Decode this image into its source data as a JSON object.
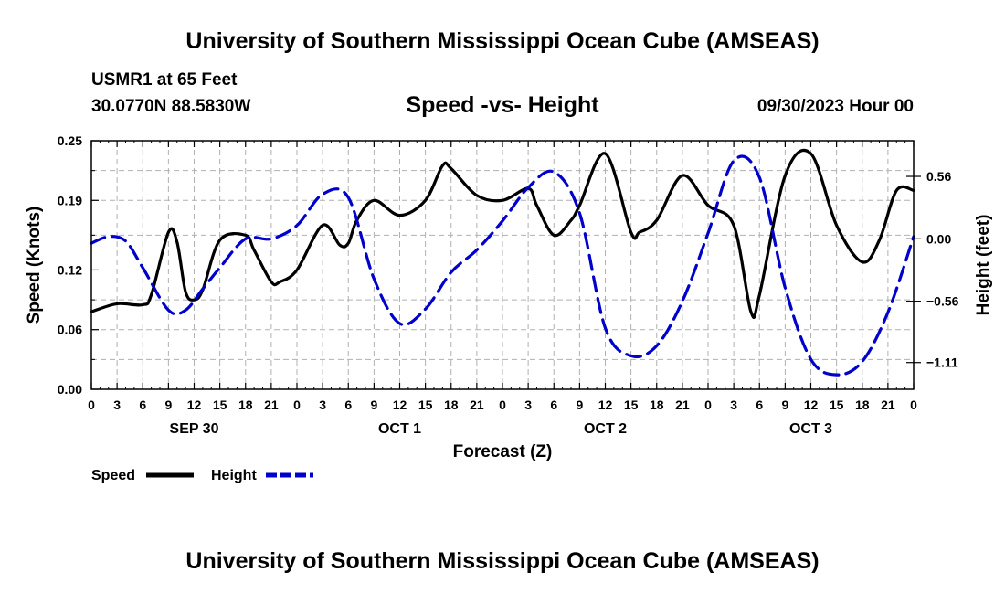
{
  "page": {
    "title_top": "University of Southern Mississippi Ocean Cube (AMSEAS)",
    "title_bottom": "University of Southern Mississippi Ocean Cube (AMSEAS)",
    "station": "USMR1 at 65 Feet",
    "coords": "30.0770N  88.5830W",
    "subtitle": "Speed -vs- Height",
    "datetime": "09/30/2023 Hour 00"
  },
  "chart_data": {
    "type": "line",
    "title": "Speed -vs- Height",
    "xlabel": "Forecast (Z)",
    "ylabel": "Speed (Knots)",
    "y2label": "Height (feet)",
    "xlim": [
      0,
      96
    ],
    "ylim": [
      0,
      0.25
    ],
    "y2lim": [
      -1.35,
      0.88
    ],
    "x_ticks": [
      0,
      3,
      6,
      9,
      12,
      15,
      18,
      21,
      24,
      27,
      30,
      33,
      36,
      39,
      42,
      45,
      48,
      51,
      54,
      57,
      60,
      63,
      66,
      69,
      72,
      75,
      78,
      81,
      84,
      87,
      90,
      93,
      96
    ],
    "x_tick_labels": [
      "0",
      "3",
      "6",
      "9",
      "12",
      "15",
      "18",
      "21",
      "0",
      "3",
      "6",
      "9",
      "12",
      "15",
      "18",
      "21",
      "0",
      "3",
      "6",
      "9",
      "12",
      "15",
      "18",
      "21",
      "0",
      "3",
      "6",
      "9",
      "12",
      "15",
      "18",
      "21",
      "0"
    ],
    "day_labels": [
      {
        "x": 12,
        "label": "SEP 30"
      },
      {
        "x": 36,
        "label": "OCT 1"
      },
      {
        "x": 60,
        "label": "OCT 2"
      },
      {
        "x": 84,
        "label": "OCT 3"
      }
    ],
    "y_ticks": [
      0,
      0.06,
      0.12,
      0.19,
      0.25
    ],
    "y_tick_labels": [
      "0.00",
      "0.06",
      "0.12",
      "0.19",
      "0.25"
    ],
    "y2_ticks": [
      0.56,
      0,
      -0.56,
      -1.11
    ],
    "y2_tick_labels": [
      "0.56",
      "0.00",
      "−0.56",
      "−1.11"
    ],
    "grid": true,
    "legend": [
      "Speed",
      "Height"
    ],
    "series": [
      {
        "name": "Speed",
        "axis": "left",
        "color": "#000000",
        "dash": "solid",
        "x": [
          0,
          3,
          6,
          7,
          9,
          10,
          11,
          12,
          13,
          15,
          18,
          19,
          21,
          22,
          24,
          27,
          29,
          30,
          31,
          33,
          36,
          39,
          41,
          42,
          45,
          48,
          51,
          52,
          54,
          56,
          57,
          60,
          63,
          64,
          66,
          69,
          72,
          75,
          77,
          78,
          81,
          84,
          87,
          90,
          92,
          94,
          96
        ],
        "values": [
          0.078,
          0.086,
          0.085,
          0.095,
          0.158,
          0.148,
          0.098,
          0.09,
          0.1,
          0.15,
          0.155,
          0.14,
          0.108,
          0.108,
          0.12,
          0.165,
          0.145,
          0.147,
          0.17,
          0.19,
          0.175,
          0.19,
          0.225,
          0.222,
          0.195,
          0.19,
          0.202,
          0.185,
          0.155,
          0.17,
          0.185,
          0.237,
          0.158,
          0.158,
          0.17,
          0.215,
          0.185,
          0.165,
          0.078,
          0.095,
          0.215,
          0.237,
          0.165,
          0.128,
          0.15,
          0.2,
          0.2
        ]
      },
      {
        "name": "Height",
        "axis": "right",
        "color": "#0000cc",
        "dash": "dashed",
        "x": [
          0,
          2,
          4,
          6,
          9,
          11,
          13,
          15,
          18,
          21,
          24,
          27,
          30,
          33,
          36,
          39,
          42,
          45,
          48,
          51,
          54,
          57,
          60,
          63,
          66,
          69,
          72,
          75,
          78,
          81,
          84,
          87,
          90,
          93,
          96
        ],
        "values": [
          -0.04,
          0.02,
          -0.02,
          -0.26,
          -0.64,
          -0.64,
          -0.45,
          -0.26,
          0.0,
          0.0,
          0.12,
          0.4,
          0.37,
          -0.36,
          -0.76,
          -0.63,
          -0.3,
          -0.1,
          0.16,
          0.46,
          0.6,
          0.23,
          -0.8,
          -1.05,
          -0.96,
          -0.56,
          0.05,
          0.7,
          0.55,
          -0.44,
          -1.08,
          -1.22,
          -1.1,
          -0.66,
          0.02
        ]
      }
    ]
  }
}
